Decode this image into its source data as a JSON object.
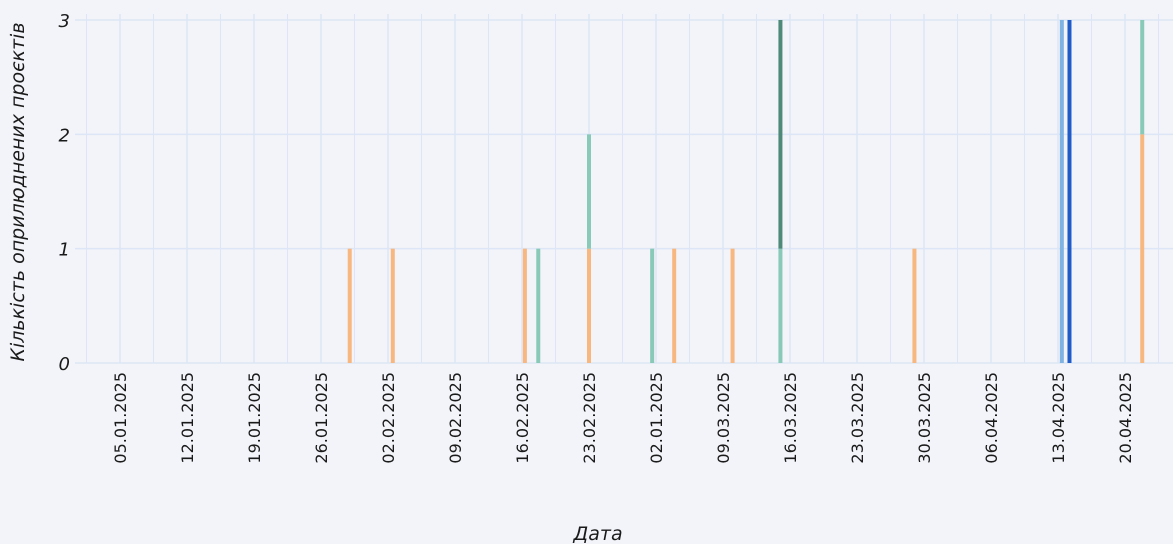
{
  "chart_data": {
    "type": "bar",
    "stacked": true,
    "xlabel": "Дата",
    "ylabel": "Кількість оприлюднених проєктів",
    "ylim": [
      0,
      3
    ],
    "yticks": [
      0,
      1,
      2,
      3
    ],
    "grid": true,
    "x_tick_labels": [
      "05.01.2025",
      "12.01.2025",
      "19.01.2025",
      "26.01.2025",
      "02.02.2025",
      "09.02.2025",
      "16.02.2025",
      "23.02.2025",
      "02.01.2025",
      "09.03.2025",
      "16.03.2025",
      "23.03.2025",
      "30.03.2025",
      "06.04.2025",
      "13.04.2025",
      "20.04.2025"
    ],
    "colors": {
      "orange": "#f7b77f",
      "teal": "#88c9b8",
      "dark_green": "#4e8a78",
      "light_blue": "#7fb3e2",
      "blue": "#1f5cc8",
      "grid": "#dde6f6",
      "background": "#f2f4f9"
    },
    "series": [
      {
        "color_key": "orange",
        "points": [
          [
            24.0,
            1
          ],
          [
            28.5,
            1
          ],
          [
            42.3,
            1
          ],
          [
            49.0,
            1
          ],
          [
            57.9,
            1
          ],
          [
            64.0,
            1
          ],
          [
            83.0,
            1
          ],
          [
            106.8,
            2
          ]
        ]
      },
      {
        "color_key": "teal",
        "points": [
          [
            43.7,
            1
          ],
          [
            49.0,
            1
          ],
          [
            55.6,
            1
          ],
          [
            69.0,
            1
          ],
          [
            106.8,
            1
          ]
        ]
      },
      {
        "color_key": "dark_green",
        "points": [
          [
            69.0,
            2
          ]
        ]
      },
      {
        "color_key": "light_blue",
        "points": [
          [
            98.4,
            3
          ]
        ]
      },
      {
        "color_key": "blue",
        "points": [
          [
            99.2,
            3
          ]
        ]
      }
    ]
  }
}
